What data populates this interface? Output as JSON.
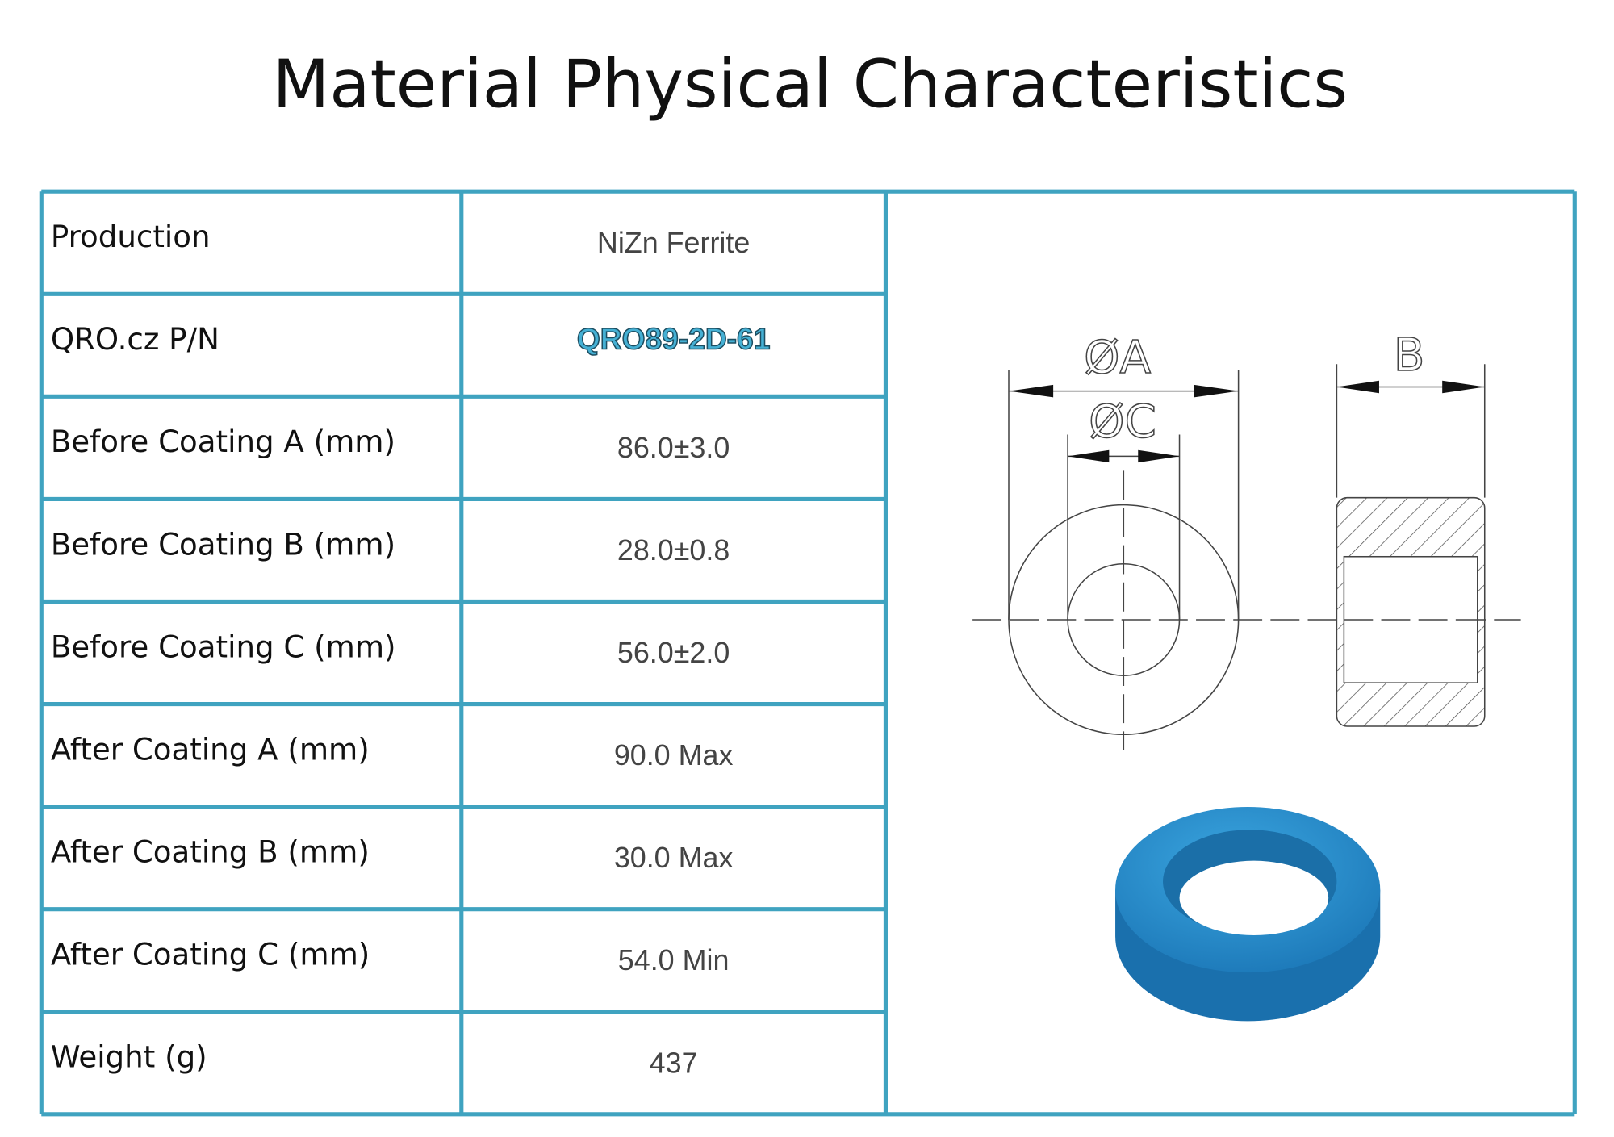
{
  "title": "Material Physical Characteristics",
  "table": {
    "rows": [
      [
        "Production",
        "NiZn Ferrite"
      ],
      [
        "QRO.cz P/N",
        "QRO89-2D-61"
      ],
      [
        "Before Coating  A (mm)",
        "86.0±3.0"
      ],
      [
        "Before Coating B (mm)",
        "28.0±0.8"
      ],
      [
        "Before Coating C (mm)",
        "56.0±2.0"
      ],
      [
        "After Coating A (mm)",
        "90.0 Max"
      ],
      [
        "After Coating B (mm)",
        "30.0 Max"
      ],
      [
        "After Coating C (mm)",
        "54.0 Min"
      ],
      [
        "Weight (g)",
        "437"
      ]
    ]
  },
  "diagram": {
    "labels": [
      "ØA",
      "ØC",
      "B"
    ]
  }
}
